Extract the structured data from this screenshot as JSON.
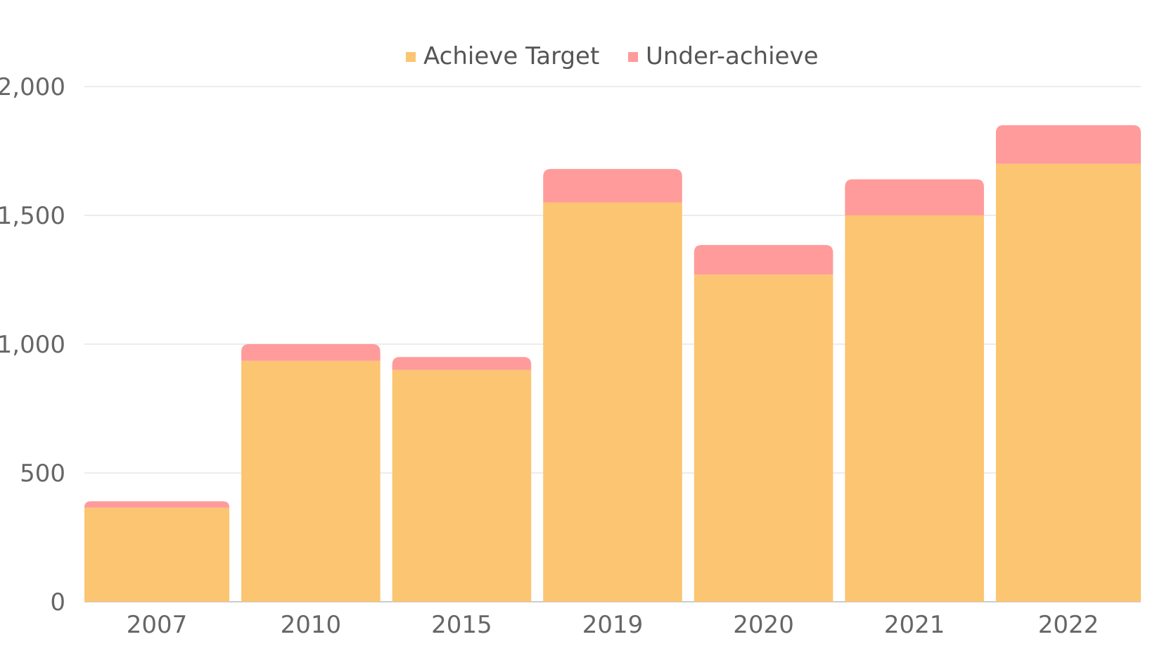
{
  "chart_data": {
    "type": "bar",
    "stacked": true,
    "categories": [
      "2007",
      "2010",
      "2015",
      "2019",
      "2020",
      "2021",
      "2022"
    ],
    "series": [
      {
        "name": "Achieve Target",
        "color": "#FCC572",
        "values": [
          365,
          935,
          900,
          1550,
          1270,
          1500,
          1700
        ]
      },
      {
        "name": "Under-achieve",
        "color": "#FF9B9B",
        "values": [
          25,
          65,
          50,
          130,
          115,
          140,
          150
        ]
      }
    ],
    "yticks": [
      "0",
      "500",
      "1,000",
      "1,500",
      "2,000"
    ],
    "ylim": [
      0,
      2000
    ],
    "grid": true,
    "legend_position": "top-center",
    "title": "",
    "xlabel": "",
    "ylabel": ""
  }
}
